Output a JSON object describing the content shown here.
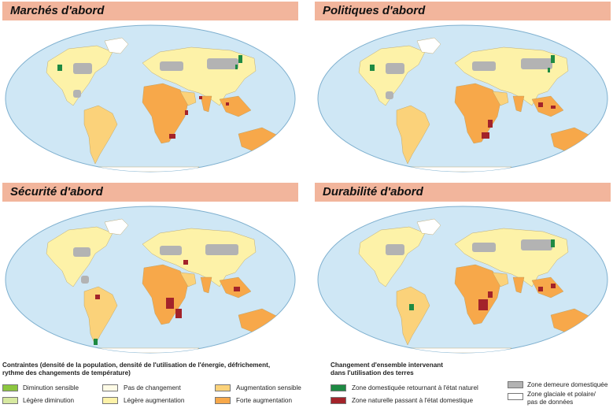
{
  "panels": [
    {
      "title": "Marchés d'abord"
    },
    {
      "title": "Politiques d'abord"
    },
    {
      "title": "Sécurité d'abord"
    },
    {
      "title": "Durabilité d'abord"
    }
  ],
  "legend_left": {
    "title_line1": "Contraintes (densité de la population, densité de l'utilisation de l'énergie, défrichement,",
    "title_line2": "rythme des changements de température)",
    "items": [
      {
        "label": "Diminution sensible",
        "color": "#8cc63f"
      },
      {
        "label": "Légère diminution",
        "color": "#d7e9a0"
      },
      {
        "label": "Pas de changement",
        "color": "#fefbe6"
      },
      {
        "label": "Légère augmentation",
        "color": "#fdf2a8"
      },
      {
        "label": "Augmentation sensible",
        "color": "#fbd27a"
      },
      {
        "label": "Forte augmentation",
        "color": "#f7a84a"
      }
    ]
  },
  "legend_right": {
    "title_line1": "Changement d'ensemble intervenant",
    "title_line2": "dans l'utilisation des terres",
    "items": [
      {
        "label": "Zone domestiquée retournant à l'état naturel",
        "color": "#1e8a43"
      },
      {
        "label": "Zone naturelle passant à l'état domestique",
        "color": "#a3232a"
      },
      {
        "label": "Zone demeure domestiquée",
        "color": "#b3b3b3"
      },
      {
        "label_line1": "Zone glaciale et polaire/",
        "label_line2": "pas de données",
        "color": "#ffffff"
      }
    ]
  },
  "colors": {
    "ocean": "#cfe7f5",
    "ocean_border": "#7fb0cf",
    "header": "#f2b59c",
    "land_base": "#fdf2a8",
    "grey": "#b3b3b3",
    "green": "#1e8a43",
    "red": "#a3232a",
    "orange": "#f7a84a",
    "orange_light": "#fbd27a",
    "pale_green": "#d7e9a0"
  }
}
